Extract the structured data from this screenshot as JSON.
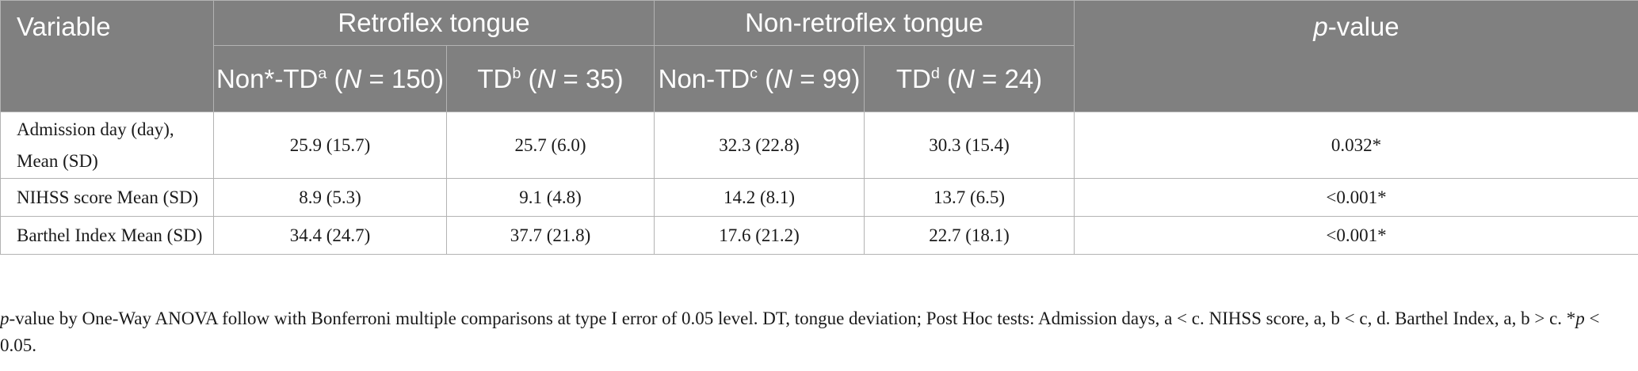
{
  "table": {
    "headers": {
      "variable": "Variable",
      "group_retroflex": "Retroflex tongue",
      "group_non_retroflex": "Non-retroflex tongue",
      "pvalue_italic": "p",
      "pvalue_rest": "-value",
      "subcolumns": [
        {
          "pre": "Non*-TD",
          "sup": "a",
          "mid": " (",
          "italic": "N",
          "post": " = 150)"
        },
        {
          "pre": "TD",
          "sup": "b",
          "mid": " (",
          "italic": "N",
          "post": " = 35)"
        },
        {
          "pre": "Non-TD",
          "sup": "c",
          "mid": " (",
          "italic": "N",
          "post": " = 99)"
        },
        {
          "pre": "TD",
          "sup": "d",
          "mid": " (",
          "italic": "N",
          "post": " = 24)"
        }
      ]
    },
    "rows": [
      {
        "label_line1": "Admission day (day),",
        "label_line2": "Mean (SD)",
        "values": [
          "25.9 (15.7)",
          "25.7 (6.0)",
          "32.3 (22.8)",
          "30.3 (15.4)"
        ],
        "pvalue": "0.032*"
      },
      {
        "label": "NIHSS score Mean (SD)",
        "values": [
          "8.9 (5.3)",
          "9.1 (4.8)",
          "14.2 (8.1)",
          "13.7 (6.5)"
        ],
        "pvalue": "<0.001*"
      },
      {
        "label": "Barthel Index Mean (SD)",
        "values": [
          "34.4 (24.7)",
          "37.7 (21.8)",
          "17.6 (21.2)",
          "22.7 (18.1)"
        ],
        "pvalue": "<0.001*"
      }
    ]
  },
  "footnote": {
    "italic_p": "p",
    "text_part1": "-value by One-Way ANOVA follow with Bonferroni multiple comparisons at type I error of 0.05 level. DT, tongue deviation; Post Hoc tests: Admission days, a < c. NIHSS score, a, b < c, d. Barthel Index, a, b > c. *",
    "italic_p2": "p",
    "text_part2": " < 0.05."
  },
  "colors": {
    "header_bg": "#808080",
    "header_text": "#ffffff",
    "border": "#b3b3b3",
    "body_text": "#1a1a1a"
  }
}
